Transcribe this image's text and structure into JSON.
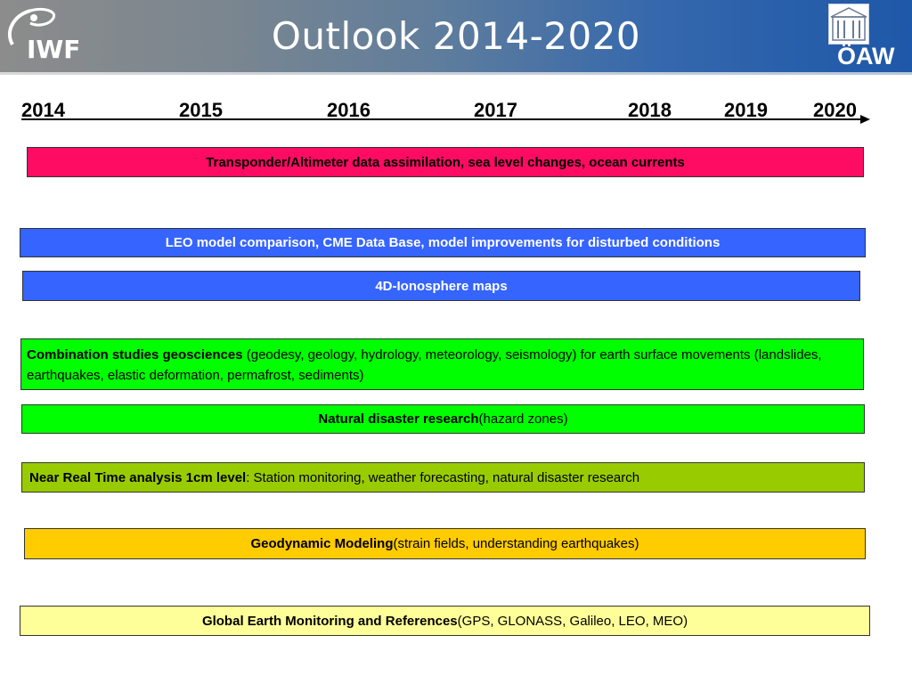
{
  "header": {
    "title": "Outlook 2014-2020",
    "logo_left": "IWF",
    "logo_right": "ÖAW"
  },
  "timeline": {
    "years": [
      "2014",
      "2015",
      "2016",
      "2017",
      "2018",
      "2019",
      "2020"
    ]
  },
  "bars": [
    {
      "bold": "Transponder/Altimeter  data assimilation, sea level changes, ocean currents",
      "text": ""
    },
    {
      "bold": "LEO model comparison, CME Data Base, model improvements for disturbed conditions",
      "text": ""
    },
    {
      "bold": "4D-Ionosphere maps",
      "text": ""
    },
    {
      "bold": "Combination studies geosciences",
      "text": " (geodesy, geology, hydrology, meteorology, seismology) for earth surface movements (landslides, earthquakes, elastic deformation, permafrost, sediments)"
    },
    {
      "bold": "Natural disaster research",
      "text": " (hazard zones)"
    },
    {
      "bold": "Near Real Time analysis 1cm level",
      "text": ": Station monitoring, weather forecasting, natural disaster research"
    },
    {
      "bold": "Geodynamic Modeling",
      "text": " (strain fields, understanding earthquakes)"
    },
    {
      "bold": "Global Earth Monitoring and References",
      "text": " (GPS, GLONASS, Galileo, LEO, MEO)"
    }
  ],
  "colors": {
    "pink": "#fe0b63",
    "blue": "#3564fe",
    "green": "#00ff00",
    "olive": "#99cc00",
    "orange": "#ffcc00",
    "cream": "#ffff99",
    "header_dark": "#1e58a8"
  }
}
